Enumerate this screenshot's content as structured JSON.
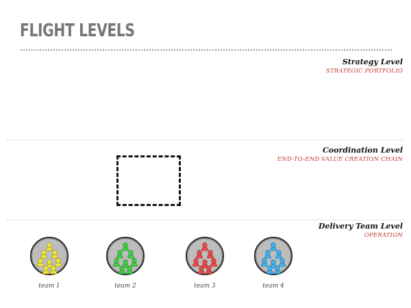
{
  "header": {
    "title": "FLIGHT LEVELS"
  },
  "levels": [
    {
      "name": "Strategy Level",
      "subtitle": "STRATEGIC PORTFOLIO"
    },
    {
      "name": "Coordination Level",
      "subtitle": "END-TO-END VALUE CREATION CHAIN"
    },
    {
      "name": "Delivery Team Level",
      "subtitle": "OPERATION"
    }
  ],
  "teams": [
    {
      "label": "team 1",
      "color": "#f2e63a",
      "icon": "team-people-cluster"
    },
    {
      "label": "team 2",
      "color": "#3fd144",
      "icon": "team-people-cluster"
    },
    {
      "label": "team 3",
      "color": "#ec4a4a",
      "icon": "team-people-cluster"
    },
    {
      "label": "team 4",
      "color": "#3fb3f0",
      "icon": "team-people-cluster"
    }
  ],
  "colors": {
    "title": "#767676",
    "subtitle": "#c0392b",
    "team_circle": "#bdbdbd"
  }
}
